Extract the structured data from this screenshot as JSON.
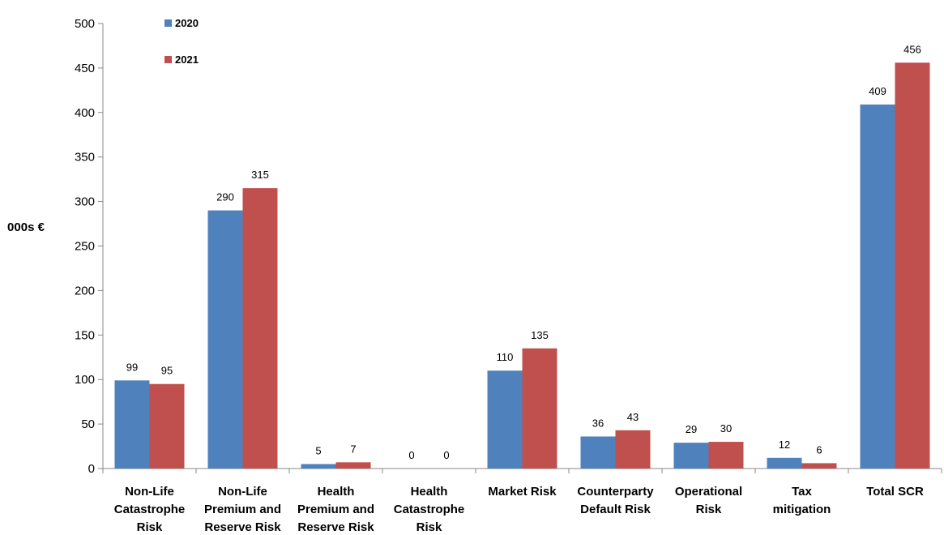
{
  "chart_data": {
    "type": "bar",
    "ylabel": "000s €",
    "ylim": [
      0,
      500
    ],
    "yticks": [
      0,
      50,
      100,
      150,
      200,
      250,
      300,
      350,
      400,
      450,
      500
    ],
    "grid": false,
    "legend_position": "top-left",
    "categories": [
      [
        "Non-Life",
        "Catastrophe",
        "Risk"
      ],
      [
        "Non-Life",
        "Premium and",
        "Reserve Risk"
      ],
      [
        "Health",
        "Premium and",
        "Reserve Risk"
      ],
      [
        "Health",
        "Catastrophe",
        "Risk"
      ],
      [
        "Market Risk"
      ],
      [
        "Counterparty",
        "Default Risk"
      ],
      [
        "Operational",
        "Risk"
      ],
      [
        "Tax",
        "mitigation"
      ],
      [
        "Total SCR"
      ]
    ],
    "series": [
      {
        "name": "2020",
        "color": "#4f81bd",
        "values": [
          99,
          290,
          5,
          0,
          110,
          36,
          29,
          12,
          409
        ]
      },
      {
        "name": "2021",
        "color": "#c0504d",
        "values": [
          95,
          315,
          7,
          0,
          135,
          43,
          30,
          6,
          456
        ]
      }
    ]
  }
}
